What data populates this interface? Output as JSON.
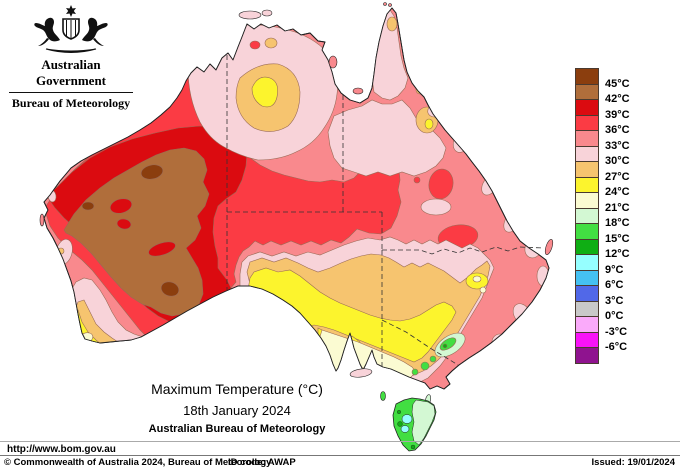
{
  "header": {
    "government": "Australian Government",
    "bureau": "Bureau of Meteorology"
  },
  "legend": {
    "unit": "°C",
    "swatches": [
      {
        "color": "#8B3E0E",
        "label": "45°C"
      },
      {
        "color": "#B06E3B",
        "label": "42°C"
      },
      {
        "color": "#DB0B10",
        "label": "39°C"
      },
      {
        "color": "#FB3B44",
        "label": "36°C"
      },
      {
        "color": "#F9898D",
        "label": "33°C"
      },
      {
        "color": "#F8D3D9",
        "label": "30°C"
      },
      {
        "color": "#F6C46F",
        "label": "27°C"
      },
      {
        "color": "#FCF42D",
        "label": "24°C"
      },
      {
        "color": "#FBFBD2",
        "label": "21°C"
      },
      {
        "color": "#D3F8D3",
        "label": "18°C"
      },
      {
        "color": "#42DE42",
        "label": "15°C"
      },
      {
        "color": "#0FAE14",
        "label": "12°C"
      },
      {
        "color": "#96FFFF",
        "label": "9°C"
      },
      {
        "color": "#45C1F2",
        "label": "6°C"
      },
      {
        "color": "#5168E8",
        "label": "3°C"
      },
      {
        "color": "#C9C9C9",
        "label": "0°C"
      },
      {
        "color": "#FAAAFA",
        "label": "-3°C"
      },
      {
        "color": "#F813F8",
        "label": "-6°C"
      },
      {
        "color": "#8F138F",
        "label": ""
      }
    ]
  },
  "title": {
    "line1": "Maximum Temperature (°C)",
    "line2": "18th January 2024",
    "line3": "Australian Bureau of Meteorology"
  },
  "footer": {
    "url": "http://www.bom.gov.au",
    "copyright": "© Commonwealth of Australia 2024, Bureau of Meteorology",
    "id_code": "ID code: AWAP",
    "issued": "Issued: 19/01/2024"
  }
}
